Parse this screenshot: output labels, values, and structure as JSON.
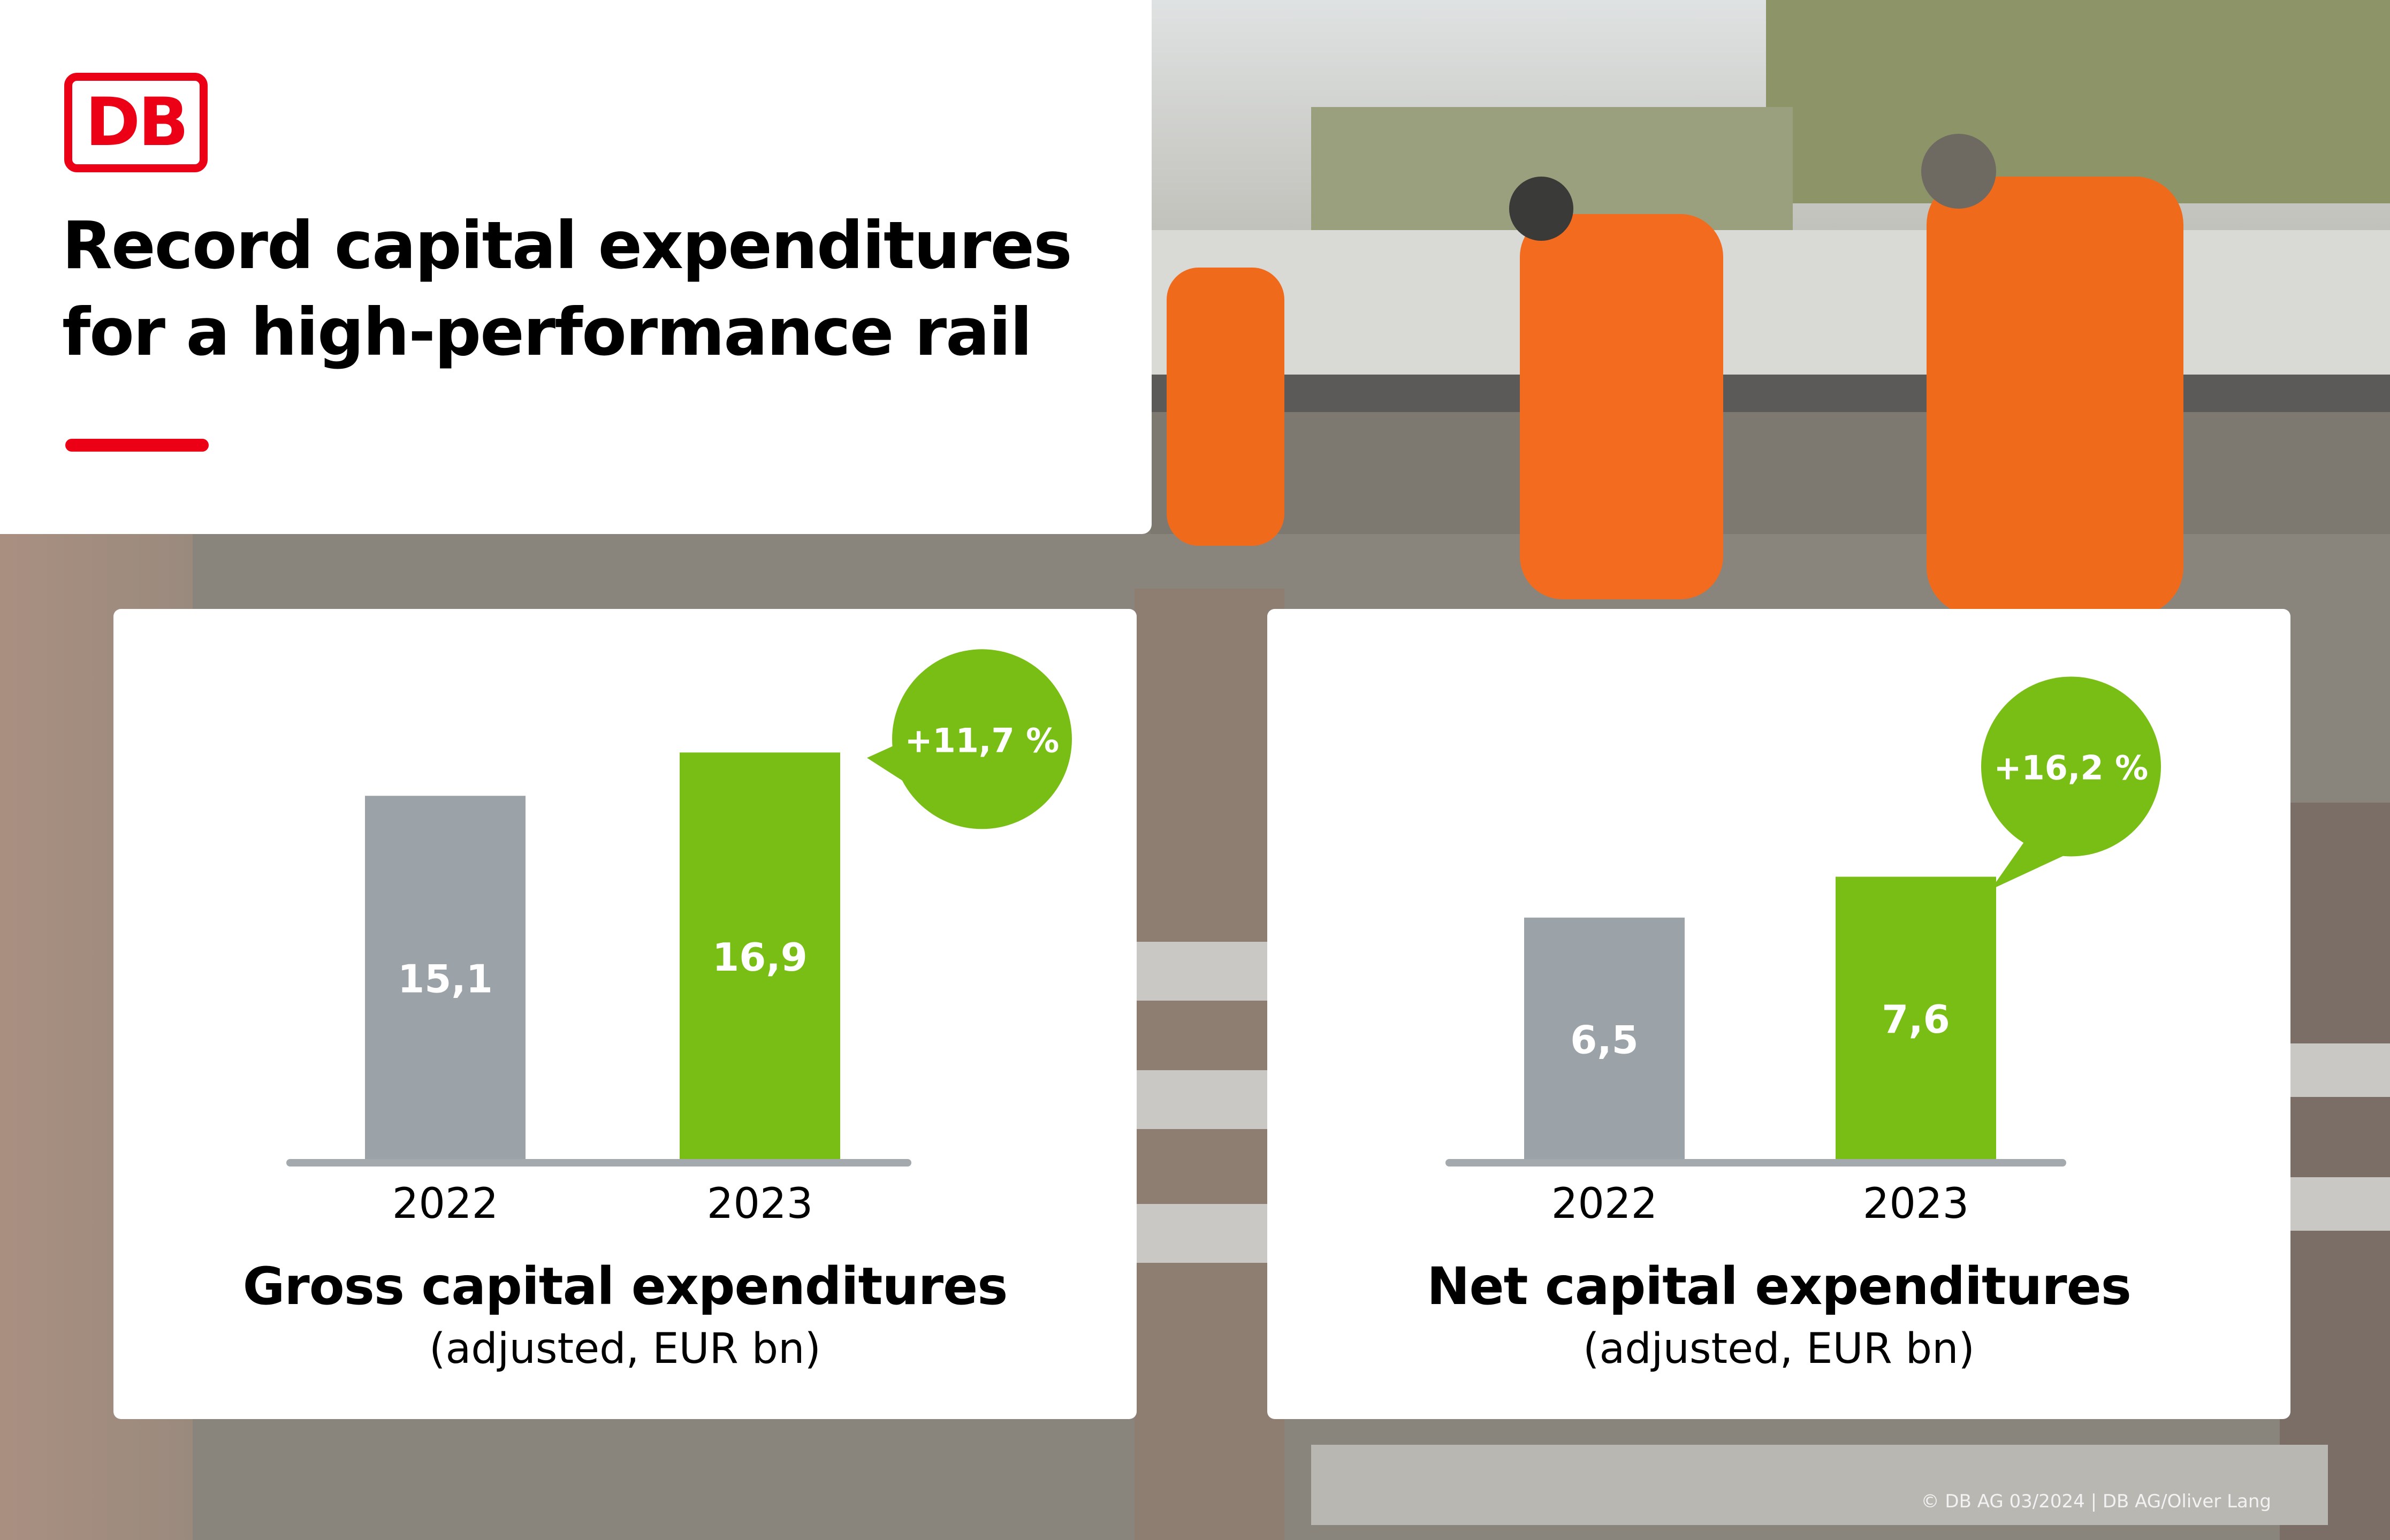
{
  "brand": {
    "logo_text": "DB",
    "accent_color": "#ec0016"
  },
  "headline": {
    "line1": "Record capital expenditures",
    "line2": "for a high-performance rail"
  },
  "colors": {
    "prior_year": "#9ca3a8",
    "current_year": "#78be14",
    "axis": "#a3a9ad"
  },
  "chart_data": [
    {
      "type": "bar",
      "title": "Gross capital expenditures",
      "subtitle": "(adjusted, EUR bn)",
      "categories": [
        "2022",
        "2023"
      ],
      "values": [
        15.1,
        16.9
      ],
      "value_labels": [
        "15,1",
        "16,9"
      ],
      "bar_colors": [
        "#9ca3a8",
        "#78be14"
      ],
      "ylim": [
        0,
        21
      ],
      "change_label": "+11,7 %"
    },
    {
      "type": "bar",
      "title": "Net capital expenditures",
      "subtitle": "(adjusted, EUR bn)",
      "categories": [
        "2022",
        "2023"
      ],
      "values": [
        6.5,
        7.6
      ],
      "value_labels": [
        "6,5",
        "7,6"
      ],
      "bar_colors": [
        "#9ca3a8",
        "#78be14"
      ],
      "ylim": [
        0,
        13.6
      ],
      "change_label": "+16,2 %"
    }
  ],
  "footer": {
    "credit": "© DB AG 03/2024 | DB AG/Oliver Lang"
  }
}
